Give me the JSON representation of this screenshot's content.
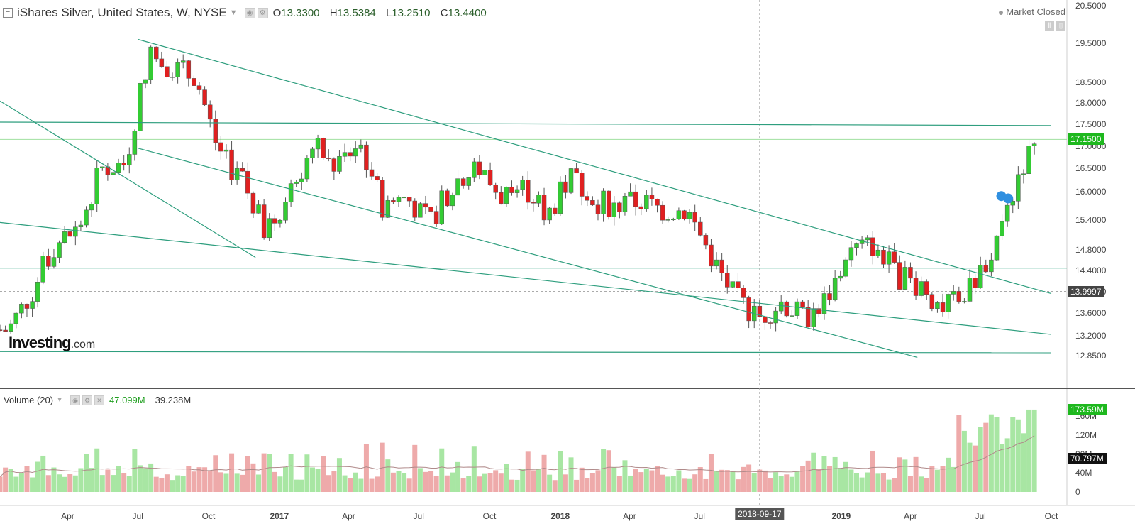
{
  "header": {
    "title": "iShares Silver, United States, W, NYSE",
    "open_label": "O",
    "open": "13.3300",
    "high_label": "H",
    "high": "13.5384",
    "low_label": "L",
    "low": "13.2510",
    "close_label": "C",
    "close": "13.4400"
  },
  "status": {
    "market": "Market Closed"
  },
  "logo": {
    "main": "Investing",
    "suffix": ".com"
  },
  "price_axis": {
    "ticks": [
      "20.5000",
      "19.5000",
      "18.5000",
      "18.0000",
      "17.5000",
      "17.0000",
      "16.5000",
      "16.0000",
      "15.4000",
      "14.8000",
      "14.4000",
      "14.0000",
      "13.6000",
      "13.2000",
      "12.8500"
    ],
    "last_price_tag": "17.1500",
    "cursor_price_tag": "13.9997"
  },
  "volume": {
    "label": "Volume (20)",
    "value": "47.099M",
    "ma_value": "39.238M",
    "ticks": [
      "160M",
      "120M",
      "80M",
      "40M",
      "0"
    ],
    "last_tag": "173.59M",
    "ma_tag": "70.797M"
  },
  "time_axis": {
    "labels": [
      "Apr",
      "Jul",
      "Oct",
      "2017",
      "Apr",
      "Jul",
      "Oct",
      "2018",
      "Apr",
      "Jul",
      "2018-09-17",
      "2019",
      "Apr",
      "Jul",
      "Oct"
    ],
    "cursor_date": "2018-09-17"
  },
  "colors": {
    "up": "#33cc33",
    "down": "#e02020",
    "up_vol": "#a8e6a3",
    "down_vol": "#eeaaaa",
    "trendline": "#2e9e7e",
    "accent": "#1eb81e"
  },
  "chart_data": {
    "type": "candlestick",
    "title": "iShares Silver, United States, W, NYSE",
    "x_range": [
      "2016-01",
      "2019-10"
    ],
    "ylim": [
      12.85,
      20.5
    ],
    "y_scale": "log",
    "grid": false,
    "series": [
      {
        "name": "Volume (20)",
        "type": "bar"
      }
    ],
    "weekly_close_points": [
      {
        "x": "2016-01",
        "y": 13.3
      },
      {
        "x": "2016-02",
        "y": 14.0
      },
      {
        "x": "2016-03",
        "y": 14.9
      },
      {
        "x": "2016-04",
        "y": 15.2
      },
      {
        "x": "2016-05",
        "y": 16.5
      },
      {
        "x": "2016-06",
        "y": 16.6
      },
      {
        "x": "2016-07",
        "y": 19.2
      },
      {
        "x": "2016-08",
        "y": 18.9
      },
      {
        "x": "2016-09",
        "y": 18.6
      },
      {
        "x": "2016-10",
        "y": 16.8
      },
      {
        "x": "2016-11",
        "y": 16.2
      },
      {
        "x": "2016-12",
        "y": 15.1
      },
      {
        "x": "2017-01",
        "y": 16.0
      },
      {
        "x": "2017-02",
        "y": 17.0
      },
      {
        "x": "2017-03",
        "y": 16.5
      },
      {
        "x": "2017-04",
        "y": 17.1
      },
      {
        "x": "2017-05",
        "y": 15.7
      },
      {
        "x": "2017-06",
        "y": 15.9
      },
      {
        "x": "2017-07",
        "y": 15.3
      },
      {
        "x": "2017-08",
        "y": 16.2
      },
      {
        "x": "2017-09",
        "y": 16.5
      },
      {
        "x": "2017-10",
        "y": 15.9
      },
      {
        "x": "2017-11",
        "y": 16.1
      },
      {
        "x": "2017-12",
        "y": 15.5
      },
      {
        "x": "2018-01",
        "y": 16.3
      },
      {
        "x": "2018-02",
        "y": 15.8
      },
      {
        "x": "2018-03",
        "y": 15.7
      },
      {
        "x": "2018-04",
        "y": 15.8
      },
      {
        "x": "2018-05",
        "y": 15.6
      },
      {
        "x": "2018-06",
        "y": 15.6
      },
      {
        "x": "2018-07",
        "y": 14.7
      },
      {
        "x": "2018-08",
        "y": 13.9
      },
      {
        "x": "2018-09",
        "y": 13.5
      },
      {
        "x": "2018-10",
        "y": 13.8
      },
      {
        "x": "2018-11",
        "y": 13.5
      },
      {
        "x": "2018-12",
        "y": 13.9
      },
      {
        "x": "2019-01",
        "y": 14.8
      },
      {
        "x": "2019-02",
        "y": 14.9
      },
      {
        "x": "2019-03",
        "y": 14.3
      },
      {
        "x": "2019-04",
        "y": 14.1
      },
      {
        "x": "2019-05",
        "y": 13.7
      },
      {
        "x": "2019-06",
        "y": 14.0
      },
      {
        "x": "2019-07",
        "y": 14.8
      },
      {
        "x": "2019-08",
        "y": 16.2
      },
      {
        "x": "2019-09",
        "y": 17.15
      }
    ],
    "volume_ylim": [
      0,
      175
    ]
  }
}
